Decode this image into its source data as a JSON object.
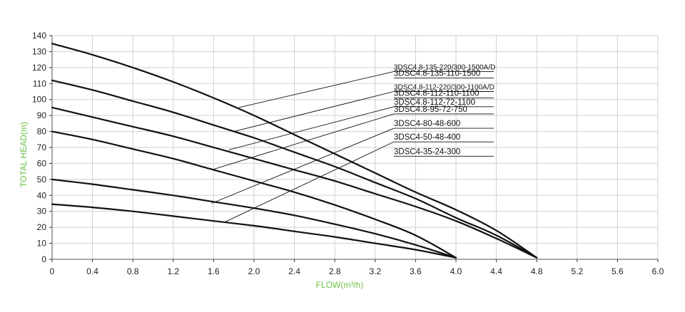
{
  "chart_data": {
    "type": "line",
    "xlabel": "FLOW(m³/h)",
    "ylabel": "TOTAL HEAD(m)",
    "xlim": [
      0,
      6.0
    ],
    "ylim": [
      0,
      140
    ],
    "x_ticks": [
      "0",
      "0.4",
      "0.8",
      "1.2",
      "1.6",
      "2.0",
      "2.4",
      "2.8",
      "3.2",
      "3.6",
      "4.0",
      "4.4",
      "4.8",
      "5.2",
      "5.6",
      "6.0"
    ],
    "y_ticks": [
      "0",
      "10",
      "20",
      "30",
      "40",
      "50",
      "60",
      "70",
      "80",
      "90",
      "100",
      "110",
      "120",
      "130",
      "140"
    ],
    "grid": true,
    "colors": {
      "curve": "#111111",
      "grid": "#cfcfcf",
      "axis_title": "#6cc24a"
    },
    "series": [
      {
        "name": "3DSC4.8-135-220/300-1500A/D",
        "name2": "3DSC4.8-135-110-1500",
        "x": [
          0,
          0.4,
          0.8,
          1.2,
          1.6,
          2.0,
          2.4,
          2.8,
          3.2,
          3.6,
          4.0,
          4.4,
          4.8
        ],
        "y": [
          135,
          128,
          120,
          111,
          101,
          90,
          78,
          66,
          54,
          42,
          31,
          18,
          1
        ]
      },
      {
        "name": "3DSC4.8-112-220/300-1100A/D",
        "name2": "3DSC4.8-112-110-1100",
        "name3": "3DSC4.8-112-72-1100",
        "x": [
          0,
          0.4,
          0.8,
          1.2,
          1.6,
          2.0,
          2.4,
          2.8,
          3.2,
          3.6,
          4.0,
          4.4,
          4.8
        ],
        "y": [
          112,
          106,
          99,
          92,
          84,
          76,
          67,
          58,
          48,
          38,
          26,
          15,
          1
        ]
      },
      {
        "name": "3DSC4.8-95-72-750",
        "x": [
          0,
          0.4,
          0.8,
          1.2,
          1.6,
          2.0,
          2.4,
          2.8,
          3.2,
          3.6,
          4.0,
          4.4,
          4.8
        ],
        "y": [
          95,
          89,
          83,
          77,
          70,
          63,
          56,
          49,
          41,
          33,
          24,
          13,
          1
        ]
      },
      {
        "name": "3DSC4-80-48-600",
        "x": [
          0,
          0.4,
          0.8,
          1.2,
          1.6,
          2.0,
          2.4,
          2.8,
          3.2,
          3.6,
          4.0
        ],
        "y": [
          80,
          75,
          69,
          63,
          56,
          49,
          42,
          34,
          25,
          15,
          1
        ]
      },
      {
        "name": "3DSC4-50-48-400",
        "x": [
          0,
          0.4,
          0.8,
          1.2,
          1.6,
          2.0,
          2.4,
          2.8,
          3.2,
          3.6,
          4.0
        ],
        "y": [
          50,
          47,
          43.5,
          40,
          36,
          32,
          27.5,
          22,
          16,
          9,
          1
        ]
      },
      {
        "name": "3DSC4-35-24-300",
        "x": [
          0,
          0.4,
          0.8,
          1.2,
          1.6,
          2.0,
          2.4,
          2.8,
          3.2,
          3.6,
          4.0
        ],
        "y": [
          34.5,
          32.5,
          30,
          27,
          24,
          21,
          17.5,
          14,
          10,
          6,
          1
        ]
      }
    ],
    "callouts": [
      {
        "text": "3DSC4.8-135-220/300-1500A/D",
        "small": true,
        "y_label": 117.5,
        "pt": [
          1.85,
          95
        ]
      },
      {
        "text": "3DSC4.8-135-110-1500",
        "small": false,
        "y_label": 113.5,
        "pt": null
      },
      {
        "text": "3DSC4.8-112-220/300-1100A/D",
        "small": true,
        "y_label": 105,
        "pt": [
          1.8,
          80
        ]
      },
      {
        "text": "3DSC4.8-112-110-1100",
        "small": false,
        "y_label": 101,
        "pt": null
      },
      {
        "text": "3DSC4.8-112-72-1100",
        "small": false,
        "y_label": 95.5,
        "pt": [
          1.75,
          68.5
        ]
      },
      {
        "text": "3DSC4.8-95-72-750",
        "small": false,
        "y_label": 91,
        "pt": [
          1.58,
          56
        ]
      },
      {
        "text": "3DSC4-80-48-600",
        "small": false,
        "y_label": 82,
        "pt": [
          1.58,
          35
        ]
      },
      {
        "text": "3DSC4-50-48-400",
        "small": false,
        "y_label": 73.5,
        "pt": [
          1.7,
          23
        ]
      },
      {
        "text": "3DSC4-35-24-300",
        "small": false,
        "y_label": 64.5,
        "pt": null
      }
    ]
  }
}
